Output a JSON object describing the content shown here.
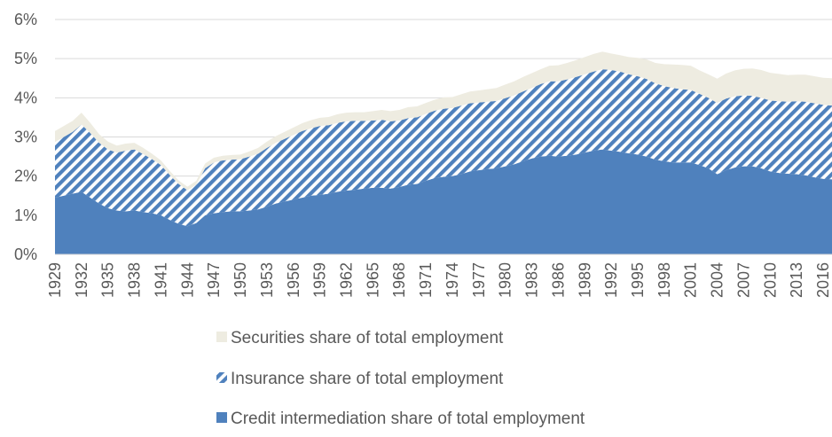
{
  "chart_data": {
    "type": "area",
    "stacked": true,
    "x_start": 1929,
    "x_end": 2017,
    "x_tick_labels": [
      "1929",
      "1932",
      "1935",
      "1938",
      "1941",
      "1944",
      "1947",
      "1950",
      "1953",
      "1956",
      "1959",
      "1962",
      "1965",
      "1968",
      "1971",
      "1974",
      "1977",
      "1980",
      "1983",
      "1986",
      "1989",
      "1992",
      "1995",
      "1998",
      "2001",
      "2004",
      "2007",
      "2010",
      "2013",
      "2016"
    ],
    "y_tick_labels": [
      "0%",
      "1%",
      "2%",
      "3%",
      "4%",
      "5%",
      "6%"
    ],
    "ylim": [
      0,
      6
    ],
    "grid": "horizontal",
    "legend_position": "bottom",
    "colors": {
      "credit": "#4f81bd",
      "insurance_stripe": "#4f81bd",
      "securities": "#eeece1",
      "grid": "#d9d9d9",
      "text": "#595959"
    },
    "series": [
      {
        "name": "Securities share of total employment",
        "key": "securities",
        "values": [
          0.28,
          0.28,
          0.28,
          0.3,
          0.26,
          0.22,
          0.2,
          0.18,
          0.18,
          0.17,
          0.16,
          0.14,
          0.12,
          0.1,
          0.09,
          0.09,
          0.1,
          0.12,
          0.12,
          0.12,
          0.12,
          0.12,
          0.13,
          0.15,
          0.16,
          0.17,
          0.18,
          0.19,
          0.2,
          0.21,
          0.21,
          0.21,
          0.22,
          0.22,
          0.22,
          0.22,
          0.24,
          0.25,
          0.26,
          0.27,
          0.28,
          0.28,
          0.28,
          0.28,
          0.29,
          0.28,
          0.29,
          0.3,
          0.31,
          0.32,
          0.33,
          0.35,
          0.36,
          0.37,
          0.38,
          0.38,
          0.4,
          0.41,
          0.42,
          0.43,
          0.44,
          0.45,
          0.45,
          0.42,
          0.42,
          0.44,
          0.47,
          0.5,
          0.52,
          0.56,
          0.6,
          0.62,
          0.62,
          0.6,
          0.6,
          0.62,
          0.64,
          0.66,
          0.68,
          0.7,
          0.71,
          0.71,
          0.7,
          0.68,
          0.68,
          0.69,
          0.69,
          0.69,
          0.7
        ]
      },
      {
        "name": "Insurance share of total employment",
        "key": "insurance",
        "values": [
          1.42,
          1.5,
          1.58,
          1.72,
          1.65,
          1.55,
          1.5,
          1.48,
          1.55,
          1.56,
          1.48,
          1.38,
          1.28,
          1.15,
          1.02,
          0.92,
          0.98,
          1.2,
          1.3,
          1.32,
          1.32,
          1.33,
          1.38,
          1.42,
          1.5,
          1.55,
          1.6,
          1.65,
          1.7,
          1.72,
          1.76,
          1.75,
          1.76,
          1.77,
          1.76,
          1.73,
          1.72,
          1.74,
          1.72,
          1.7,
          1.7,
          1.7,
          1.71,
          1.72,
          1.74,
          1.74,
          1.75,
          1.74,
          1.73,
          1.72,
          1.72,
          1.74,
          1.76,
          1.78,
          1.8,
          1.85,
          1.9,
          1.92,
          1.95,
          1.98,
          2.0,
          2.02,
          2.05,
          2.06,
          2.05,
          2.02,
          2.0,
          1.98,
          1.95,
          1.92,
          1.9,
          1.87,
          1.85,
          1.82,
          1.8,
          1.82,
          1.83,
          1.82,
          1.81,
          1.8,
          1.8,
          1.81,
          1.83,
          1.84,
          1.86,
          1.88,
          1.89,
          1.89,
          1.88
        ]
      },
      {
        "name": "Credit intermediation share of total employment",
        "key": "credit",
        "values": [
          1.45,
          1.5,
          1.55,
          1.6,
          1.45,
          1.3,
          1.18,
          1.12,
          1.1,
          1.12,
          1.08,
          1.05,
          1.0,
          0.88,
          0.78,
          0.72,
          0.8,
          1.0,
          1.05,
          1.08,
          1.1,
          1.1,
          1.12,
          1.15,
          1.22,
          1.3,
          1.35,
          1.4,
          1.45,
          1.5,
          1.52,
          1.55,
          1.6,
          1.63,
          1.65,
          1.68,
          1.7,
          1.7,
          1.68,
          1.72,
          1.78,
          1.8,
          1.88,
          1.95,
          1.98,
          2.0,
          2.05,
          2.12,
          2.15,
          2.18,
          2.2,
          2.25,
          2.3,
          2.38,
          2.45,
          2.5,
          2.52,
          2.5,
          2.52,
          2.55,
          2.6,
          2.65,
          2.68,
          2.65,
          2.62,
          2.58,
          2.55,
          2.5,
          2.42,
          2.38,
          2.35,
          2.35,
          2.35,
          2.28,
          2.2,
          2.05,
          2.15,
          2.22,
          2.25,
          2.25,
          2.2,
          2.12,
          2.08,
          2.06,
          2.05,
          2.02,
          1.97,
          1.93,
          1.92
        ]
      }
    ]
  }
}
